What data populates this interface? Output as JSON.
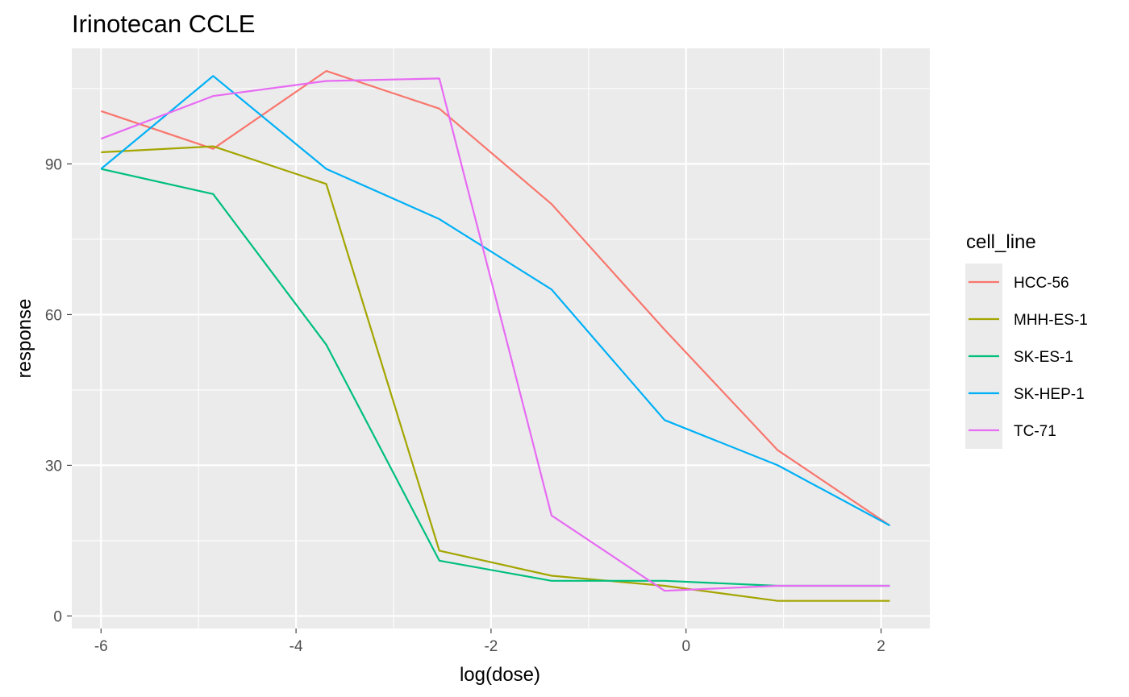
{
  "chart_data": {
    "type": "line",
    "title": "Irinotecan CCLE",
    "xlabel": "log(dose)",
    "ylabel": "response",
    "xlim": [
      -6.3,
      2.5
    ],
    "ylim": [
      -2.5,
      113
    ],
    "x_ticks": [
      -6,
      -4,
      -2,
      0,
      2
    ],
    "y_ticks": [
      0,
      30,
      60,
      90
    ],
    "x_tick_labels": [
      "-6",
      "-4",
      "-2",
      "0",
      "2"
    ],
    "y_tick_labels": [
      "0",
      "30",
      "60",
      "90"
    ],
    "grid": true,
    "panel_background": "#ebebeb",
    "legend": {
      "title": "cell_line",
      "position": "right"
    },
    "x": [
      -6.0,
      -4.85,
      -3.69,
      -2.53,
      -1.38,
      -0.22,
      0.94,
      2.09
    ],
    "series": [
      {
        "name": "HCC-56",
        "color": "#F8766D",
        "values": [
          100.5,
          93,
          108.5,
          101,
          82,
          57,
          33,
          18
        ]
      },
      {
        "name": "MHH-ES-1",
        "color": "#A3A500",
        "values": [
          92.3,
          93.5,
          86,
          13,
          8,
          6,
          3,
          3
        ]
      },
      {
        "name": "SK-ES-1",
        "color": "#00BF7D",
        "values": [
          89,
          84,
          54,
          11,
          7,
          7,
          6,
          6
        ]
      },
      {
        "name": "SK-HEP-1",
        "color": "#00B0F6",
        "values": [
          89,
          107.5,
          89,
          79,
          65,
          39,
          30,
          18
        ]
      },
      {
        "name": "TC-71",
        "color": "#E76BF3",
        "values": [
          95,
          103.5,
          106.5,
          107,
          20,
          5,
          6,
          6
        ]
      }
    ]
  }
}
